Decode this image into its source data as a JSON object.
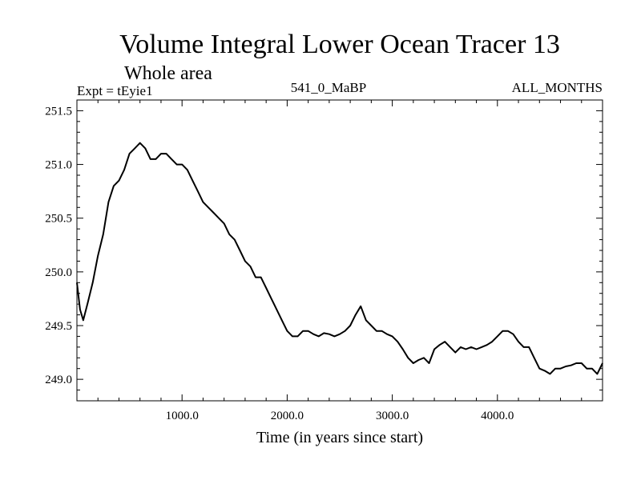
{
  "chart_data": {
    "type": "line",
    "title": "Volume Integral Lower Ocean Tracer 13",
    "subtitle": "Whole area",
    "expt_label": "Expt = tEyie1",
    "center_label": "541_0_MaBP",
    "right_label": "ALL_MONTHS",
    "xlabel": "Time (in years since start)",
    "ylabel": "",
    "xlim": [
      0,
      5000
    ],
    "ylim": [
      248.8,
      251.6
    ],
    "x_ticks": [
      1000,
      2000,
      3000,
      4000
    ],
    "x_tick_labels": [
      "1000.0",
      "2000.0",
      "3000.0",
      "4000.0"
    ],
    "y_ticks": [
      249.0,
      249.5,
      250.0,
      250.5,
      251.0,
      251.5
    ],
    "y_tick_labels": [
      "249.0",
      "249.5",
      "250.0",
      "250.5",
      "251.0",
      "251.5"
    ],
    "grid": false,
    "series": [
      {
        "name": "tEyie1",
        "x": [
          0,
          30,
          60,
          100,
          150,
          200,
          250,
          300,
          350,
          400,
          450,
          500,
          550,
          600,
          650,
          700,
          750,
          800,
          850,
          900,
          950,
          1000,
          1050,
          1100,
          1150,
          1200,
          1250,
          1300,
          1350,
          1400,
          1450,
          1500,
          1550,
          1600,
          1650,
          1700,
          1750,
          1800,
          1850,
          1900,
          1950,
          2000,
          2050,
          2100,
          2150,
          2200,
          2250,
          2300,
          2350,
          2400,
          2450,
          2500,
          2550,
          2600,
          2650,
          2700,
          2750,
          2800,
          2850,
          2900,
          2950,
          3000,
          3050,
          3100,
          3150,
          3200,
          3250,
          3300,
          3350,
          3400,
          3450,
          3500,
          3550,
          3600,
          3650,
          3700,
          3750,
          3800,
          3850,
          3900,
          3950,
          4000,
          4050,
          4100,
          4150,
          4200,
          4250,
          4300,
          4350,
          4400,
          4450,
          4500,
          4550,
          4600,
          4650,
          4700,
          4750,
          4800,
          4850,
          4900,
          4950,
          5000
        ],
        "values": [
          249.9,
          249.65,
          249.55,
          249.7,
          249.9,
          250.15,
          250.35,
          250.65,
          250.8,
          250.85,
          250.95,
          251.1,
          251.15,
          251.2,
          251.15,
          251.05,
          251.05,
          251.1,
          251.1,
          251.05,
          251.0,
          251.0,
          250.95,
          250.85,
          250.75,
          250.65,
          250.6,
          250.55,
          250.5,
          250.45,
          250.35,
          250.3,
          250.2,
          250.1,
          250.05,
          249.95,
          249.95,
          249.85,
          249.75,
          249.65,
          249.55,
          249.45,
          249.4,
          249.4,
          249.45,
          249.45,
          249.42,
          249.4,
          249.43,
          249.42,
          249.4,
          249.42,
          249.45,
          249.5,
          249.6,
          249.68,
          249.55,
          249.5,
          249.45,
          249.45,
          249.42,
          249.4,
          249.35,
          249.28,
          249.2,
          249.15,
          249.18,
          249.2,
          249.15,
          249.28,
          249.32,
          249.35,
          249.3,
          249.25,
          249.3,
          249.28,
          249.3,
          249.28,
          249.3,
          249.32,
          249.35,
          249.4,
          249.45,
          249.45,
          249.42,
          249.35,
          249.3,
          249.3,
          249.2,
          249.1,
          249.08,
          249.05,
          249.1,
          249.1,
          249.12,
          249.13,
          249.15,
          249.15,
          249.1,
          249.1,
          249.05,
          249.15
        ]
      }
    ]
  }
}
